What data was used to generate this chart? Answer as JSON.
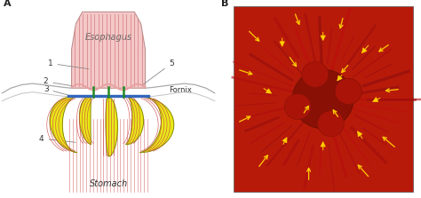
{
  "fig_width": 4.74,
  "fig_height": 2.23,
  "dpi": 100,
  "background_color": "#ffffff",
  "panel_A": {
    "label": "A",
    "title_esophagus": "Esophagus",
    "title_stomach": "Stomach",
    "label_fornix": "Fornix",
    "esophagus_fill": "#f5c8c8",
    "esophagus_stripe": "#cc7777",
    "esophagus_edge": "#c09090",
    "yellow_fill": "#e8e818",
    "yellow_edge": "#888800",
    "blue_bar": "#3366bb",
    "green_lines": "#228822",
    "red_stripe": "#cc4444",
    "wavy_color": "#e8a0a0",
    "hill_color": "#aaaaaa",
    "label_color": "#333333",
    "bg_color": "#f0f0ec"
  },
  "panel_B": {
    "label": "B",
    "bg_color": "#c02010",
    "photo_bg": "#bb1e10",
    "arrow_color": "#ffcc00"
  }
}
